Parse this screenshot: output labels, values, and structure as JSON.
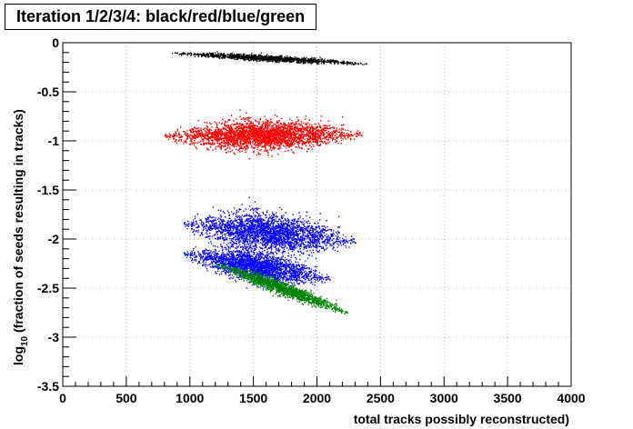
{
  "chart_data": {
    "type": "scatter",
    "title": "Iteration 1/2/3/4: black/red/blue/green",
    "xlabel": "total tracks possibly reconstructed)",
    "ylabel_prefix": "log",
    "ylabel_subscript": "10",
    "ylabel_suffix": " (fraction of seeds resulting in tracks)",
    "xlim": [
      0,
      4000
    ],
    "ylim": [
      -3.5,
      0
    ],
    "x_ticks": [
      "0",
      "500",
      "1000",
      "1500",
      "2000",
      "2500",
      "3000",
      "3500",
      "4000"
    ],
    "y_ticks": [
      "0",
      "-0.5",
      "-1",
      "-1.5",
      "-2",
      "-2.5",
      "-3",
      "-3.5"
    ],
    "grid": true,
    "series": [
      {
        "color": "#000000",
        "clusters": [
          {
            "x_range": [
              850,
              2400
            ],
            "y_at_xmin": -0.1,
            "y_at_xmax": -0.21,
            "y_spread": 0.025,
            "n": 1400
          }
        ]
      },
      {
        "color": "#ff0000",
        "clusters": [
          {
            "x_range": [
              800,
              2350
            ],
            "y_at_xmin": -0.95,
            "y_at_xmax": -0.93,
            "y_spread": 0.13,
            "n": 5500
          }
        ]
      },
      {
        "color": "#0000ff",
        "clusters": [
          {
            "x_range": [
              950,
              2300
            ],
            "y_at_xmin": -1.85,
            "y_at_xmax": -2.02,
            "y_spread": 0.17,
            "n": 3800
          },
          {
            "x_range": [
              950,
              2100
            ],
            "y_at_xmin": -2.15,
            "y_at_xmax": -2.4,
            "y_spread": 0.13,
            "n": 2600
          }
        ]
      },
      {
        "color": "#008000",
        "clusters": [
          {
            "x_range": [
              1200,
              2250
            ],
            "y_at_xmin": -2.25,
            "y_at_xmax": -2.75,
            "y_spread": 0.06,
            "n": 1800
          }
        ]
      }
    ]
  }
}
